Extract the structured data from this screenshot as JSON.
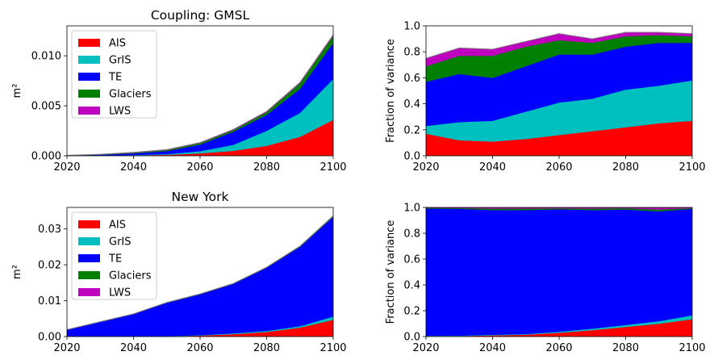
{
  "colors": {
    "AIS": "#ff0000",
    "GrIS": "#00bfbf",
    "TE": "#0000ff",
    "Glaciers": "#008000",
    "LWS": "#bf00bf",
    "topline": "#808080"
  },
  "chart_data": [
    {
      "type": "area",
      "stacked": true,
      "title": "Coupling: GMSL",
      "xlabel": "",
      "ylabel": "m²",
      "xlim": [
        2020,
        2100
      ],
      "ylim": [
        0,
        0.013
      ],
      "xticks": [
        "2020",
        "2040",
        "2060",
        "2080",
        "2100"
      ],
      "yticks": [
        "0.000",
        "0.005",
        "0.010"
      ],
      "ytick_values": [
        0,
        0.005,
        0.01
      ],
      "legend": "upper-left",
      "x": [
        2020,
        2030,
        2040,
        2050,
        2060,
        2070,
        2080,
        2090,
        2100
      ],
      "series": [
        {
          "name": "AIS",
          "values": [
            0.0,
            2e-05,
            5e-05,
            0.0001,
            0.00025,
            0.0005,
            0.001,
            0.0019,
            0.0036
          ]
        },
        {
          "name": "GrIS",
          "values": [
            0.0,
            1e-05,
            3e-05,
            8e-05,
            0.00022,
            0.0006,
            0.0015,
            0.0024,
            0.0041
          ]
        },
        {
          "name": "TE",
          "values": [
            2e-05,
            7e-05,
            0.00017,
            0.0003,
            0.00065,
            0.0013,
            0.0016,
            0.0024,
            0.0036
          ]
        },
        {
          "name": "Glaciers",
          "values": [
            1e-05,
            3e-05,
            6e-05,
            0.0001,
            0.00015,
            0.00018,
            0.00027,
            0.00055,
            0.0007
          ]
        },
        {
          "name": "LWS",
          "values": [
            1e-05,
            2e-05,
            3e-05,
            4e-05,
            5e-05,
            6e-05,
            7e-05,
            8e-05,
            0.0001
          ]
        }
      ]
    },
    {
      "type": "area",
      "stacked": true,
      "title": "",
      "xlabel": "",
      "ylabel": "Fraction of variance",
      "xlim": [
        2020,
        2100
      ],
      "ylim": [
        0,
        1
      ],
      "xticks": [
        "2020",
        "2040",
        "2060",
        "2080",
        "2100"
      ],
      "yticks": [
        "0.0",
        "0.2",
        "0.4",
        "0.6",
        "0.8",
        "1.0"
      ],
      "ytick_values": [
        0,
        0.2,
        0.4,
        0.6,
        0.8,
        1.0
      ],
      "legend": "none",
      "x": [
        2020,
        2030,
        2040,
        2050,
        2060,
        2070,
        2080,
        2090,
        2100
      ],
      "series": [
        {
          "name": "AIS",
          "values": [
            0.17,
            0.12,
            0.11,
            0.13,
            0.16,
            0.19,
            0.22,
            0.25,
            0.27
          ]
        },
        {
          "name": "GrIS",
          "values": [
            0.06,
            0.14,
            0.16,
            0.21,
            0.25,
            0.25,
            0.29,
            0.29,
            0.31
          ]
        },
        {
          "name": "TE",
          "values": [
            0.34,
            0.37,
            0.33,
            0.35,
            0.37,
            0.34,
            0.33,
            0.33,
            0.29
          ]
        },
        {
          "name": "Glaciers",
          "values": [
            0.12,
            0.14,
            0.17,
            0.15,
            0.11,
            0.09,
            0.08,
            0.06,
            0.05
          ]
        },
        {
          "name": "LWS",
          "values": [
            0.06,
            0.06,
            0.05,
            0.04,
            0.05,
            0.03,
            0.03,
            0.02,
            0.02
          ]
        }
      ]
    },
    {
      "type": "area",
      "stacked": true,
      "title": "New York",
      "xlabel": "",
      "ylabel": "m²",
      "xlim": [
        2020,
        2100
      ],
      "ylim": [
        0,
        0.036
      ],
      "xticks": [
        "2020",
        "2040",
        "2060",
        "2080",
        "2100"
      ],
      "yticks": [
        "0.00",
        "0.01",
        "0.02",
        "0.03"
      ],
      "ytick_values": [
        0,
        0.01,
        0.02,
        0.03
      ],
      "legend": "upper-left",
      "x": [
        2020,
        2030,
        2040,
        2050,
        2060,
        2070,
        2080,
        2090,
        2100
      ],
      "series": [
        {
          "name": "AIS",
          "values": [
            0.0,
            0.0,
            5e-05,
            0.0001,
            0.0003,
            0.0007,
            0.0013,
            0.0025,
            0.0047
          ]
        },
        {
          "name": "GrIS",
          "values": [
            0.0,
            0.0,
            2e-05,
            4e-05,
            0.0001,
            0.0002,
            0.0003,
            0.0004,
            0.0009
          ]
        },
        {
          "name": "TE",
          "values": [
            0.0019,
            0.0041,
            0.0062,
            0.0093,
            0.0114,
            0.0138,
            0.0176,
            0.0221,
            0.0278
          ]
        },
        {
          "name": "Glaciers",
          "values": [
            2e-05,
            3e-05,
            4e-05,
            5e-05,
            6e-05,
            8e-05,
            0.0001,
            0.00015,
            0.0002
          ]
        },
        {
          "name": "LWS",
          "values": [
            1e-05,
            1e-05,
            2e-05,
            2e-05,
            3e-05,
            3e-05,
            4e-05,
            5e-05,
            6e-05
          ]
        }
      ]
    },
    {
      "type": "area",
      "stacked": true,
      "title": "",
      "xlabel": "",
      "ylabel": "Fraction of variance",
      "xlim": [
        2020,
        2100
      ],
      "ylim": [
        0,
        1
      ],
      "xticks": [
        "2020",
        "2040",
        "2060",
        "2080",
        "2100"
      ],
      "yticks": [
        "0.0",
        "0.2",
        "0.4",
        "0.6",
        "0.8",
        "1.0"
      ],
      "ytick_values": [
        0,
        0.2,
        0.4,
        0.6,
        0.8,
        1.0
      ],
      "legend": "none",
      "x": [
        2020,
        2030,
        2040,
        2050,
        2060,
        2070,
        2080,
        2090,
        2100
      ],
      "series": [
        {
          "name": "AIS",
          "values": [
            0.005,
            0.005,
            0.01,
            0.015,
            0.03,
            0.05,
            0.075,
            0.1,
            0.135
          ]
        },
        {
          "name": "GrIS",
          "values": [
            0.002,
            0.003,
            0.004,
            0.005,
            0.008,
            0.012,
            0.015,
            0.02,
            0.03
          ]
        },
        {
          "name": "TE",
          "values": [
            0.985,
            0.982,
            0.966,
            0.96,
            0.948,
            0.918,
            0.895,
            0.85,
            0.825
          ]
        },
        {
          "name": "Glaciers",
          "values": [
            0.005,
            0.006,
            0.012,
            0.012,
            0.008,
            0.012,
            0.01,
            0.015,
            0.006
          ]
        },
        {
          "name": "LWS",
          "values": [
            0.003,
            0.004,
            0.008,
            0.008,
            0.006,
            0.008,
            0.005,
            0.015,
            0.004
          ]
        }
      ]
    }
  ]
}
